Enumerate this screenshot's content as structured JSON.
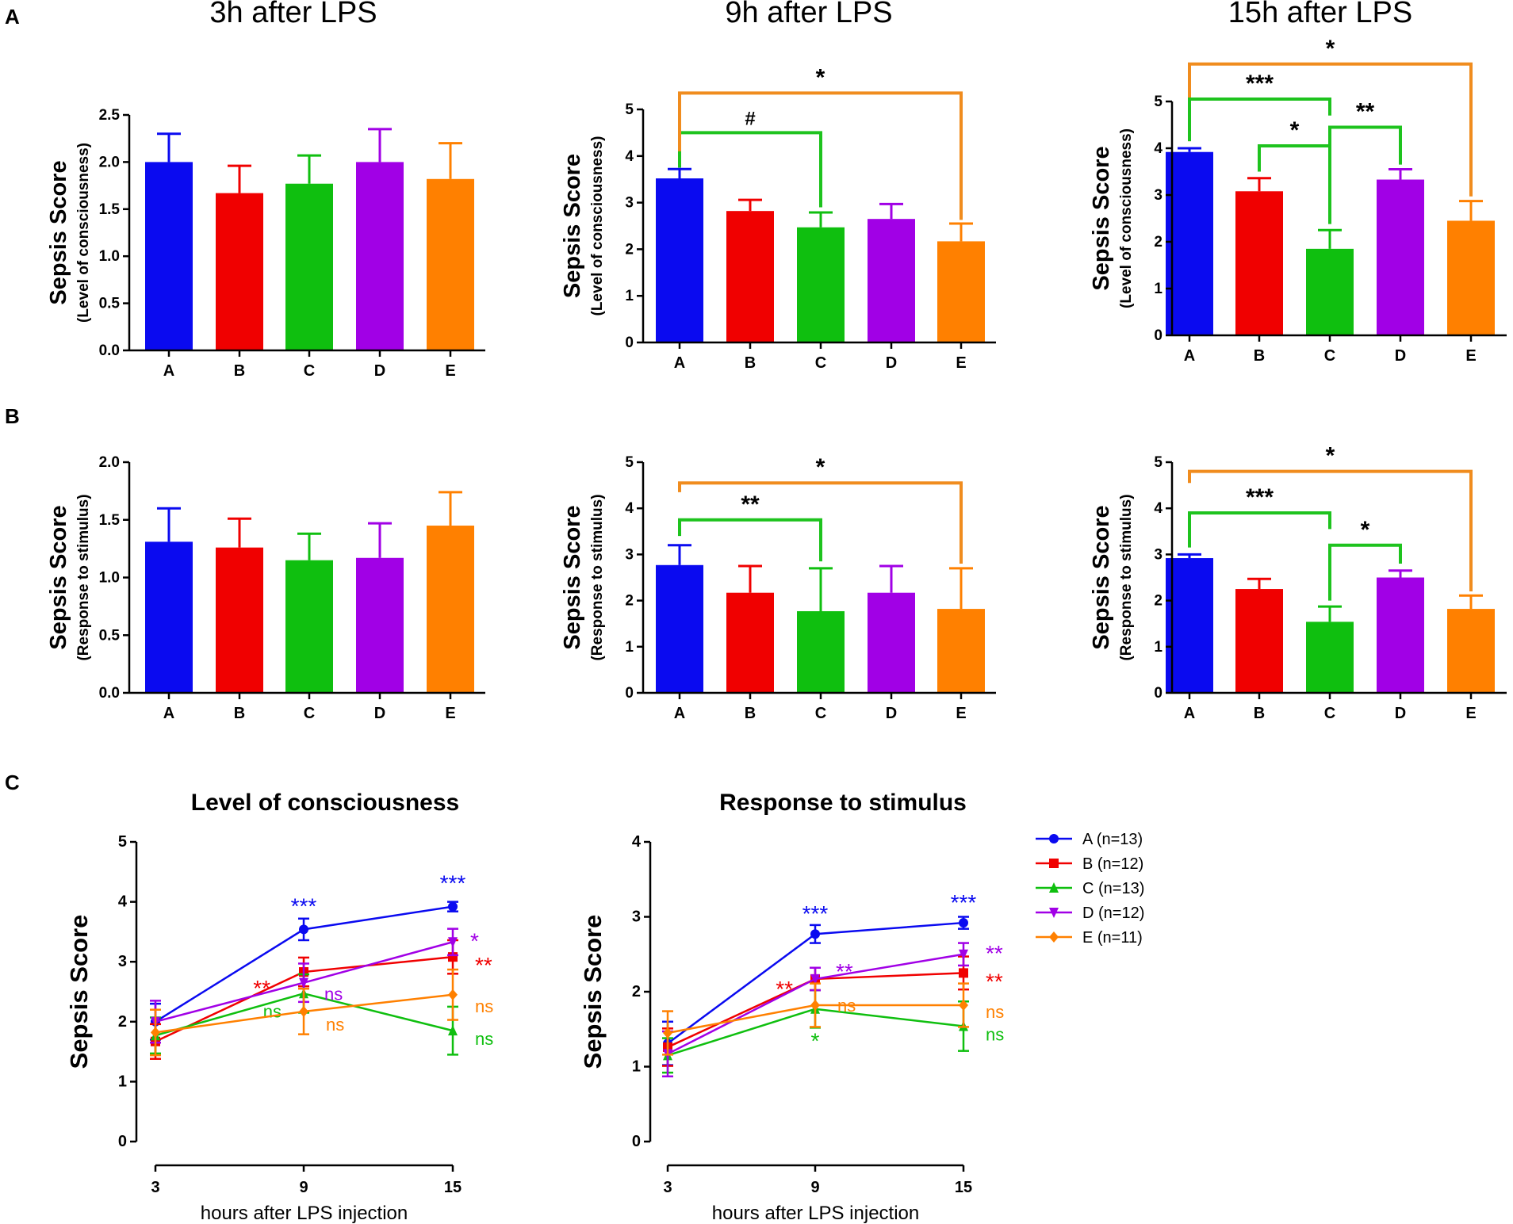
{
  "panel_labels": {
    "a": "A",
    "b": "B",
    "c": "C"
  },
  "colors": {
    "A": "#0a0af0",
    "B": "#f00000",
    "C": "#0fbf0f",
    "D": "#a100e6",
    "E": "#ff8000",
    "axis": "#000000",
    "bracket_green": "#1ec31e",
    "bracket_orange": "#f08c1e"
  },
  "chart_data": [
    {
      "id": "A1",
      "type": "bar",
      "title": "3h after LPS",
      "ylabel": "Sepsis Score",
      "ylabel_sub": "Level of consciousness",
      "ylim": [
        0,
        2.5
      ],
      "ticks": [
        "0.0",
        "0.5",
        "1.0",
        "1.5",
        "2.0",
        "2.5"
      ],
      "categories": [
        "A",
        "B",
        "C",
        "D",
        "E"
      ],
      "values": [
        2.0,
        1.67,
        1.77,
        2.0,
        1.82
      ],
      "errors": [
        0.3,
        0.29,
        0.3,
        0.35,
        0.38
      ],
      "brackets": []
    },
    {
      "id": "A2",
      "type": "bar",
      "title": "9h after LPS",
      "ylabel": "Sepsis Score",
      "ylabel_sub": "Level of consciousness",
      "ylim": [
        0,
        5
      ],
      "ticks": [
        "0",
        "1",
        "2",
        "3",
        "4",
        "5"
      ],
      "categories": [
        "A",
        "B",
        "C",
        "D",
        "E"
      ],
      "values": [
        3.52,
        2.82,
        2.47,
        2.65,
        2.17
      ],
      "errors": [
        0.2,
        0.24,
        0.32,
        0.32,
        0.38
      ],
      "brackets": [
        {
          "from": 0,
          "to": 2,
          "level": 4.5,
          "label": "#",
          "color": "green",
          "start": 3.75,
          "end": 2.9
        },
        {
          "from": 0,
          "to": 4,
          "level": 5.35,
          "label": "*",
          "color": "orange",
          "start": 4.1,
          "end": 2.63
        }
      ]
    },
    {
      "id": "A3",
      "type": "bar",
      "title": "15h after LPS",
      "ylabel": "Sepsis Score",
      "ylabel_sub": "Level of consciousness",
      "ylim": [
        0,
        5
      ],
      "ticks": [
        "0",
        "1",
        "2",
        "3",
        "4",
        "5"
      ],
      "categories": [
        "A",
        "B",
        "C",
        "D",
        "E"
      ],
      "values": [
        3.92,
        3.08,
        1.85,
        3.33,
        2.45
      ],
      "errors": [
        0.08,
        0.28,
        0.4,
        0.22,
        0.42
      ],
      "brackets": [
        {
          "from": 0,
          "to": 4,
          "level": 5.8,
          "label": "*",
          "color": "orange",
          "start": 4.15,
          "end": 2.97
        },
        {
          "from": 0,
          "to": 2,
          "level": 5.05,
          "label": "***",
          "color": "green",
          "start": 4.15,
          "end": 4.7
        },
        {
          "from": 1,
          "to": 2,
          "level": 4.05,
          "label": "*",
          "color": "green",
          "start": 3.5,
          "end": 2.38
        },
        {
          "from": 2,
          "to": 3,
          "level": 4.45,
          "label": "**",
          "color": "green",
          "start": 4.05,
          "end": 3.65
        }
      ]
    },
    {
      "id": "B1",
      "type": "bar",
      "title": "",
      "ylabel": "Sepsis Score",
      "ylabel_sub": "Response to stimulus",
      "ylim": [
        0,
        2.0
      ],
      "ticks": [
        "0.0",
        "0.5",
        "1.0",
        "1.5",
        "2.0"
      ],
      "categories": [
        "A",
        "B",
        "C",
        "D",
        "E"
      ],
      "values": [
        1.31,
        1.26,
        1.15,
        1.17,
        1.45
      ],
      "errors": [
        0.29,
        0.25,
        0.23,
        0.3,
        0.29
      ],
      "brackets": []
    },
    {
      "id": "B2",
      "type": "bar",
      "title": "",
      "ylabel": "Sepsis Score",
      "ylabel_sub": "Response to stimulus",
      "ylim": [
        0,
        5
      ],
      "ticks": [
        "0",
        "1",
        "2",
        "3",
        "4",
        "5"
      ],
      "categories": [
        "A",
        "B",
        "C",
        "D",
        "E"
      ],
      "values": [
        2.77,
        2.17,
        1.77,
        2.17,
        1.82
      ],
      "errors": [
        0.43,
        0.58,
        0.93,
        0.58,
        0.88
      ],
      "brackets": [
        {
          "from": 0,
          "to": 2,
          "level": 3.75,
          "label": "**",
          "color": "green",
          "start": 3.4,
          "end": 2.85
        },
        {
          "from": 0,
          "to": 4,
          "level": 4.55,
          "label": "*",
          "color": "orange",
          "start": 4.35,
          "end": 2.8
        }
      ]
    },
    {
      "id": "B3",
      "type": "bar",
      "title": "",
      "ylabel": "Sepsis Score",
      "ylabel_sub": "Response to stimulus",
      "ylim": [
        0,
        5
      ],
      "ticks": [
        "0",
        "1",
        "2",
        "3",
        "4",
        "5"
      ],
      "categories": [
        "A",
        "B",
        "C",
        "D",
        "E"
      ],
      "values": [
        2.92,
        2.25,
        1.54,
        2.5,
        1.82
      ],
      "errors": [
        0.08,
        0.22,
        0.33,
        0.15,
        0.29
      ],
      "brackets": [
        {
          "from": 0,
          "to": 4,
          "level": 4.8,
          "label": "*",
          "color": "orange",
          "start": 4.55,
          "end": 2.2
        },
        {
          "from": 0,
          "to": 2,
          "level": 3.9,
          "label": "***",
          "color": "green",
          "start": 3.15,
          "end": 3.55
        },
        {
          "from": 2,
          "to": 3,
          "level": 3.2,
          "label": "*",
          "color": "green",
          "start": 2.0,
          "end": 2.8
        }
      ]
    },
    {
      "id": "C1",
      "type": "line",
      "title": "Level of consciousness",
      "ylabel": "Sepsis Score",
      "xlabel": "hours after LPS injection",
      "x": [
        3,
        9,
        15
      ],
      "xticks": [
        "3",
        "9",
        "15"
      ],
      "ylim": [
        0,
        5
      ],
      "ticks": [
        "0",
        "1",
        "2",
        "3",
        "4",
        "5"
      ],
      "series": [
        {
          "name": "A (n=13)",
          "key": "A",
          "marker": "circle",
          "values": [
            2.0,
            3.54,
            3.92
          ],
          "errors": [
            0.3,
            0.18,
            0.08
          ],
          "annotations": [
            "",
            "***",
            "***"
          ]
        },
        {
          "name": "B (n=12)",
          "key": "B",
          "marker": "square",
          "values": [
            1.67,
            2.83,
            3.08
          ],
          "errors": [
            0.29,
            0.24,
            0.28
          ],
          "annotations": [
            "",
            "**",
            "**"
          ]
        },
        {
          "name": "C (n=13)",
          "key": "C",
          "marker": "triangle",
          "values": [
            1.77,
            2.47,
            1.85
          ],
          "errors": [
            0.3,
            0.32,
            0.4
          ],
          "annotations": [
            "",
            "ns",
            "ns"
          ]
        },
        {
          "name": "D (n=12)",
          "key": "D",
          "marker": "triangle-down",
          "values": [
            2.0,
            2.65,
            3.33
          ],
          "errors": [
            0.35,
            0.32,
            0.22
          ],
          "annotations": [
            "",
            "ns",
            "*"
          ]
        },
        {
          "name": "E (n=11)",
          "key": "E",
          "marker": "diamond",
          "values": [
            1.82,
            2.17,
            2.45
          ],
          "errors": [
            0.38,
            0.38,
            0.42
          ],
          "annotations": [
            "",
            "ns",
            "ns"
          ]
        }
      ]
    },
    {
      "id": "C2",
      "type": "line",
      "title": "Response to stimulus",
      "ylabel": "Sepsis Score",
      "xlabel": "hours after LPS injection",
      "x": [
        3,
        9,
        15
      ],
      "xticks": [
        "3",
        "9",
        "15"
      ],
      "ylim": [
        0,
        4
      ],
      "ticks": [
        "0",
        "1",
        "2",
        "3",
        "4"
      ],
      "series": [
        {
          "name": "A (n=13)",
          "key": "A",
          "marker": "circle",
          "values": [
            1.31,
            2.77,
            2.92
          ],
          "errors": [
            0.29,
            0.12,
            0.08
          ],
          "annotations": [
            "",
            "***",
            "***"
          ]
        },
        {
          "name": "B (n=12)",
          "key": "B",
          "marker": "square",
          "values": [
            1.26,
            2.17,
            2.25
          ],
          "errors": [
            0.25,
            0.15,
            0.22
          ],
          "annotations": [
            "",
            "**",
            "**"
          ]
        },
        {
          "name": "C (n=13)",
          "key": "C",
          "marker": "triangle",
          "values": [
            1.15,
            1.77,
            1.54
          ],
          "errors": [
            0.23,
            0.25,
            0.33
          ],
          "annotations": [
            "",
            "*",
            "ns"
          ]
        },
        {
          "name": "D (n=12)",
          "key": "D",
          "marker": "triangle-down",
          "values": [
            1.17,
            2.17,
            2.5
          ],
          "errors": [
            0.3,
            0.15,
            0.15
          ],
          "annotations": [
            "",
            "**",
            "**"
          ]
        },
        {
          "name": "E (n=11)",
          "key": "E",
          "marker": "diamond",
          "values": [
            1.45,
            1.82,
            1.82
          ],
          "errors": [
            0.29,
            0.29,
            0.29
          ],
          "annotations": [
            "",
            "ns",
            "ns"
          ]
        }
      ]
    }
  ],
  "legend": [
    {
      "key": "A",
      "marker": "circle",
      "label": "A (n=13)"
    },
    {
      "key": "B",
      "marker": "square",
      "label": "B (n=12)"
    },
    {
      "key": "C",
      "marker": "triangle",
      "label": "C (n=13)"
    },
    {
      "key": "D",
      "marker": "triangle-down",
      "label": "D (n=12)"
    },
    {
      "key": "E",
      "marker": "diamond",
      "label": "E (n=11)"
    }
  ]
}
